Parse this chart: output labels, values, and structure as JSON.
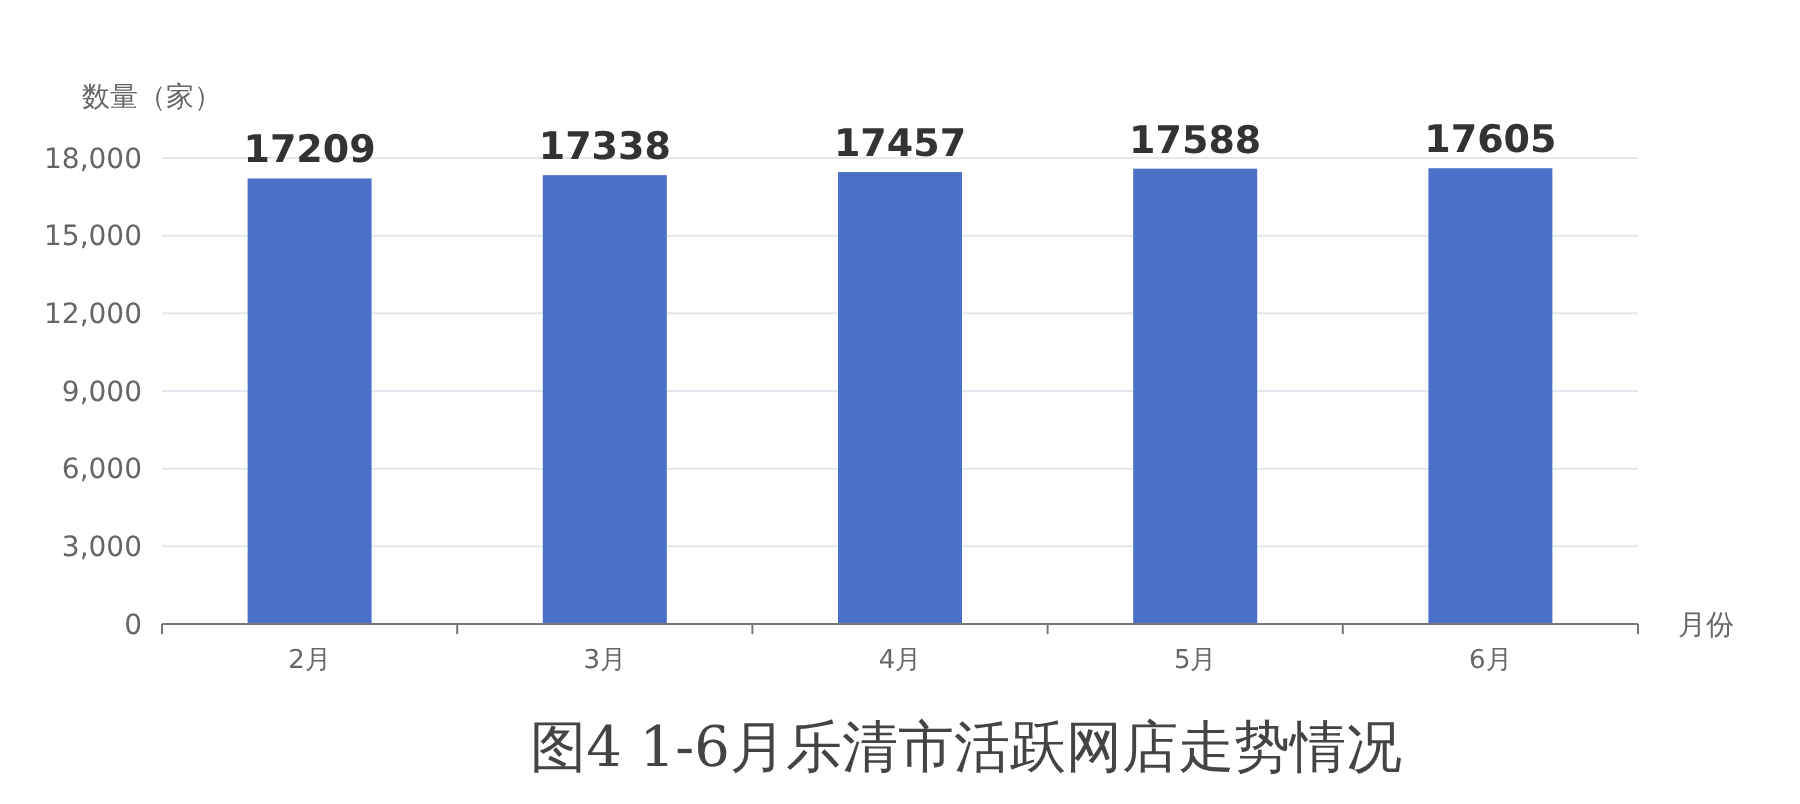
{
  "chart_data": {
    "type": "bar",
    "title": "图4 1-6月乐清市活跃网店走势情况",
    "ylabel": "数量（家）",
    "xlabel": "月份",
    "categories": [
      "2月",
      "3月",
      "4月",
      "5月",
      "6月"
    ],
    "values": [
      17209,
      17338,
      17457,
      17588,
      17605
    ],
    "color": "#4a70c8",
    "ylim": [
      0,
      18000
    ],
    "yticks": [
      0,
      {
        "value": 3000,
        "label": "3,000"
      },
      {
        "value": 6000,
        "label": "6,000"
      },
      {
        "value": 9000,
        "label": "9,000"
      },
      {
        "value": 12000,
        "label": "12,000"
      },
      {
        "value": 15000,
        "label": "15,000"
      },
      {
        "value": 18000,
        "label": "18,000"
      }
    ],
    "grid": "y",
    "data_labels": true
  }
}
